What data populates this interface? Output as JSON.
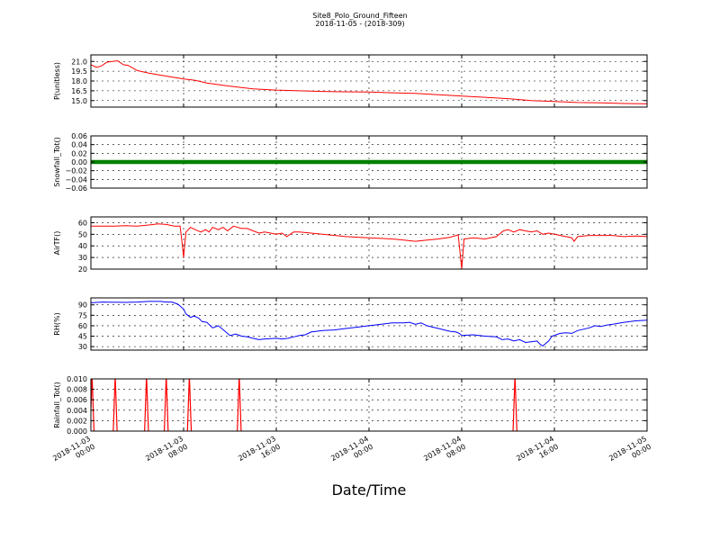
{
  "title": {
    "line1": "Site8_Polo_Ground_Fifteen",
    "line2": "2018-11-05 - (2018-309)"
  },
  "xlabel": "Date/Time",
  "colors": {
    "P": "#ff0000",
    "Snowfall": "#008000",
    "AirTF": "#ff0000",
    "RH": "#0000ff",
    "Rainfall": "#ff0000"
  },
  "chart_data": {
    "type": "line",
    "grid": true,
    "x_ticks": [
      {
        "line1": "2018-11-03",
        "line2": "00:00",
        "hours": 0
      },
      {
        "line1": "2018-11-03",
        "line2": "08:00",
        "hours": 8
      },
      {
        "line1": "2018-11-03",
        "line2": "16:00",
        "hours": 16
      },
      {
        "line1": "2018-11-04",
        "line2": "00:00",
        "hours": 24
      },
      {
        "line1": "2018-11-04",
        "line2": "08:00",
        "hours": 32
      },
      {
        "line1": "2018-11-04",
        "line2": "16:00",
        "hours": 40
      },
      {
        "line1": "2018-11-05",
        "line2": "00:00",
        "hours": 48
      }
    ],
    "xlim": [
      0,
      48
    ],
    "panels": [
      {
        "key": "P",
        "ylabel": "P(unitless)",
        "ylim": [
          14.0,
          22.0
        ],
        "yticks": [
          "15.0",
          "16.5",
          "18.0",
          "19.5",
          "21.0"
        ],
        "ytick_values": [
          15.0,
          16.5,
          18.0,
          19.5,
          21.0
        ],
        "grid_values": [
          15.0,
          16.5,
          18.0,
          19.5,
          21.0
        ],
        "points": [
          [
            0,
            20.5
          ],
          [
            0.5,
            20.1
          ],
          [
            0.9,
            20.3
          ],
          [
            1.4,
            20.9
          ],
          [
            2.3,
            21.1
          ],
          [
            2.8,
            20.5
          ],
          [
            3.2,
            20.4
          ],
          [
            4,
            19.6
          ],
          [
            5,
            19.2
          ],
          [
            6,
            18.9
          ],
          [
            7,
            18.6
          ],
          [
            8,
            18.3
          ],
          [
            9,
            18.1
          ],
          [
            10,
            17.7
          ],
          [
            12,
            17.2
          ],
          [
            14,
            16.8
          ],
          [
            16,
            16.6
          ],
          [
            18,
            16.5
          ],
          [
            20,
            16.4
          ],
          [
            22,
            16.35
          ],
          [
            24,
            16.3
          ],
          [
            26,
            16.2
          ],
          [
            28,
            16.1
          ],
          [
            30,
            15.9
          ],
          [
            32,
            15.7
          ],
          [
            34,
            15.5
          ],
          [
            36,
            15.3
          ],
          [
            38,
            15.0
          ],
          [
            40,
            14.85
          ],
          [
            42,
            14.7
          ],
          [
            44,
            14.65
          ],
          [
            46,
            14.55
          ],
          [
            48,
            14.5
          ]
        ]
      },
      {
        "key": "Snowfall",
        "ylabel": "Snowfall_Tot()",
        "ylim": [
          -0.06,
          0.06
        ],
        "yticks": [
          "−0.06",
          "−0.04",
          "−0.02",
          "0.00",
          "0.02",
          "0.04",
          "0.06"
        ],
        "ytick_values": [
          -0.06,
          -0.04,
          -0.02,
          0.0,
          0.02,
          0.04,
          0.06
        ],
        "grid_values": [
          -0.06,
          -0.04,
          -0.02,
          0.0,
          0.02,
          0.04,
          0.06
        ],
        "marker": "dot",
        "points": [
          [
            0,
            0
          ],
          [
            48,
            0
          ]
        ]
      },
      {
        "key": "AirTF",
        "ylabel": "AirTF()",
        "ylim": [
          20,
          65
        ],
        "yticks": [
          "20",
          "30",
          "40",
          "50",
          "60"
        ],
        "ytick_values": [
          20,
          30,
          40,
          50,
          60
        ],
        "grid_values": [
          20,
          30,
          40,
          50,
          60
        ],
        "points": [
          [
            0,
            57
          ],
          [
            2,
            57
          ],
          [
            3,
            57.5
          ],
          [
            4,
            57
          ],
          [
            5,
            58
          ],
          [
            5.8,
            59
          ],
          [
            6.5,
            58.5
          ],
          [
            7.2,
            57
          ],
          [
            7.7,
            57
          ],
          [
            7.9,
            40
          ],
          [
            8.0,
            30
          ],
          [
            8.2,
            52
          ],
          [
            8.6,
            56
          ],
          [
            9,
            54
          ],
          [
            9.5,
            52
          ],
          [
            9.9,
            54
          ],
          [
            10.2,
            52
          ],
          [
            10.5,
            56
          ],
          [
            11,
            54
          ],
          [
            11.4,
            56
          ],
          [
            11.8,
            53
          ],
          [
            12.3,
            57
          ],
          [
            13,
            55
          ],
          [
            13.5,
            55
          ],
          [
            14,
            53
          ],
          [
            14.5,
            51
          ],
          [
            15,
            52
          ],
          [
            15.5,
            51
          ],
          [
            16,
            50
          ],
          [
            16.5,
            51
          ],
          [
            16.9,
            48
          ],
          [
            17.5,
            52
          ],
          [
            18,
            52
          ],
          [
            20,
            50
          ],
          [
            22,
            48
          ],
          [
            24,
            47
          ],
          [
            26,
            46
          ],
          [
            27,
            45
          ],
          [
            28,
            44
          ],
          [
            29,
            45
          ],
          [
            30,
            46
          ],
          [
            31,
            47.5
          ],
          [
            31.7,
            49.5
          ],
          [
            31.9,
            30
          ],
          [
            32.0,
            20
          ],
          [
            32.2,
            46
          ],
          [
            33,
            47
          ],
          [
            34,
            46
          ],
          [
            35,
            48
          ],
          [
            35.6,
            53
          ],
          [
            36,
            54
          ],
          [
            36.5,
            52
          ],
          [
            37,
            54
          ],
          [
            37.5,
            53
          ],
          [
            38,
            52
          ],
          [
            38.5,
            53
          ],
          [
            39,
            50
          ],
          [
            39.5,
            51
          ],
          [
            40,
            50
          ],
          [
            41,
            48
          ],
          [
            41.5,
            47
          ],
          [
            41.7,
            44
          ],
          [
            42,
            48
          ],
          [
            43,
            49
          ],
          [
            44,
            49
          ],
          [
            45,
            49
          ],
          [
            46,
            48
          ],
          [
            47,
            48.5
          ],
          [
            48,
            48
          ]
        ]
      },
      {
        "key": "RH",
        "ylabel": "RH(%)",
        "ylim": [
          25,
          100
        ],
        "yticks": [
          "30",
          "45",
          "60",
          "75",
          "90"
        ],
        "ytick_values": [
          30,
          45,
          60,
          75,
          90
        ],
        "grid_values": [
          30,
          45,
          60,
          75,
          90
        ],
        "points": [
          [
            0,
            93
          ],
          [
            1,
            94
          ],
          [
            3,
            93.5
          ],
          [
            4,
            94
          ],
          [
            5,
            95
          ],
          [
            6,
            95
          ],
          [
            6.5,
            94
          ],
          [
            7,
            94
          ],
          [
            7.5,
            91
          ],
          [
            8,
            84
          ],
          [
            8.2,
            77
          ],
          [
            8.6,
            72
          ],
          [
            8.9,
            74
          ],
          [
            9.3,
            71
          ],
          [
            9.6,
            66
          ],
          [
            10,
            65
          ],
          [
            10.5,
            57
          ],
          [
            11,
            60
          ],
          [
            11.5,
            53
          ],
          [
            12,
            46
          ],
          [
            12.5,
            48
          ],
          [
            13,
            45
          ],
          [
            13.5,
            44
          ],
          [
            14,
            42
          ],
          [
            14.5,
            40
          ],
          [
            15,
            41
          ],
          [
            16,
            42
          ],
          [
            16.5,
            41
          ],
          [
            17,
            42
          ],
          [
            17.5,
            44
          ],
          [
            18,
            46
          ],
          [
            18.5,
            47
          ],
          [
            19,
            51
          ],
          [
            20,
            53
          ],
          [
            21,
            54
          ],
          [
            22,
            56
          ],
          [
            23,
            58
          ],
          [
            24,
            60
          ],
          [
            25,
            62
          ],
          [
            26,
            64
          ],
          [
            27,
            64
          ],
          [
            27.5,
            65
          ],
          [
            28,
            62
          ],
          [
            28.5,
            64
          ],
          [
            29,
            60
          ],
          [
            29.5,
            58
          ],
          [
            30,
            56
          ],
          [
            30.5,
            54
          ],
          [
            31,
            52
          ],
          [
            31.5,
            51
          ],
          [
            31.8,
            49
          ],
          [
            32,
            46
          ],
          [
            33,
            47
          ],
          [
            34,
            45
          ],
          [
            35,
            44
          ],
          [
            35.5,
            40
          ],
          [
            36,
            41
          ],
          [
            36.5,
            38
          ],
          [
            37,
            40
          ],
          [
            37.5,
            36
          ],
          [
            38,
            37
          ],
          [
            38.5,
            38
          ],
          [
            38.8,
            33
          ],
          [
            39,
            31
          ],
          [
            39.5,
            38
          ],
          [
            39.8,
            45
          ],
          [
            40.5,
            49
          ],
          [
            41,
            50
          ],
          [
            41.5,
            49
          ],
          [
            42,
            53
          ],
          [
            42.5,
            55
          ],
          [
            43,
            57
          ],
          [
            43.5,
            60
          ],
          [
            44,
            59
          ],
          [
            44.5,
            61
          ],
          [
            45,
            62
          ],
          [
            46,
            65
          ],
          [
            47,
            67
          ],
          [
            48,
            68
          ]
        ]
      },
      {
        "key": "Rainfall",
        "ylabel": "Rainfall_Tot()",
        "ylim": [
          0.0,
          0.01
        ],
        "yticks": [
          "0.000",
          "0.002",
          "0.004",
          "0.006",
          "0.008",
          "0.010"
        ],
        "ytick_values": [
          0.0,
          0.002,
          0.004,
          0.006,
          0.008,
          0.01
        ],
        "grid_values": [
          0.0,
          0.002,
          0.004,
          0.006,
          0.008,
          0.01
        ],
        "spike_x": [
          0.1,
          2.1,
          4.8,
          6.5,
          8.5,
          12.8,
          36.6
        ],
        "spike_value": 0.01
      }
    ]
  }
}
